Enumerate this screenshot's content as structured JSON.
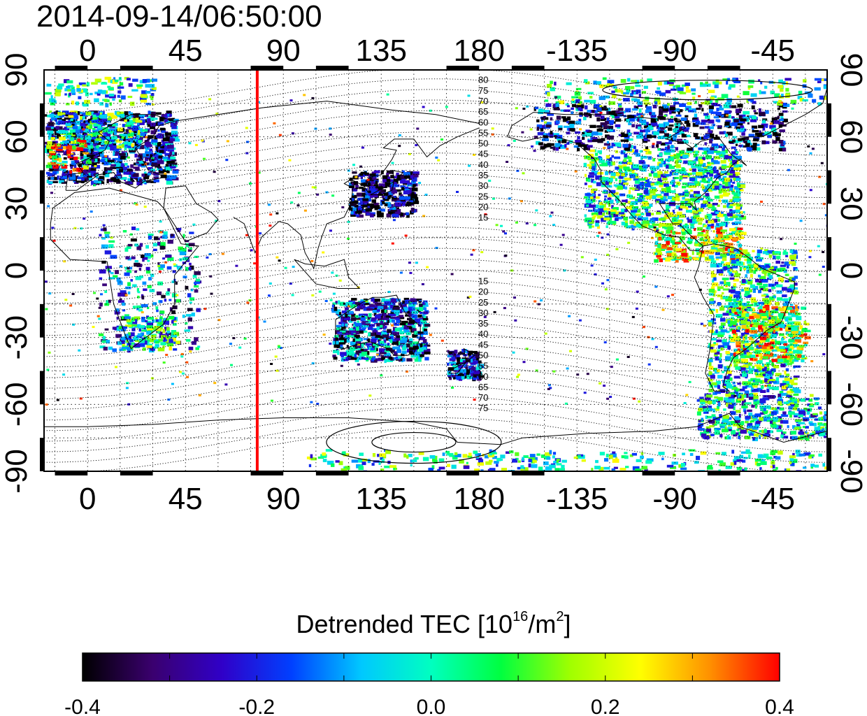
{
  "timestamp": "2014-09-14/06:50:00",
  "map": {
    "lon_tick_labels": [
      "0",
      "45",
      "90",
      "135",
      "180",
      "-135",
      "-90",
      "-45"
    ],
    "lat_tick_labels": [
      "90",
      "60",
      "30",
      "0",
      "-30",
      "-60",
      "-90"
    ],
    "lon_ticks": [
      0,
      45,
      90,
      135,
      180,
      225,
      270,
      315
    ],
    "lat_ticks": [
      90,
      60,
      30,
      0,
      -30,
      -60,
      -90
    ],
    "lon_range": [
      -20,
      340
    ],
    "lat_range": [
      -90,
      90
    ],
    "marker_line_longitude": 78,
    "marker_line_color": "#ff0000",
    "contour_labels_north": [
      "80",
      "75",
      "70",
      "65",
      "60",
      "55",
      "50",
      "45",
      "40",
      "35",
      "30",
      "25",
      "20",
      "15"
    ],
    "contour_labels_south": [
      "15",
      "20",
      "25",
      "30",
      "35",
      "40",
      "45",
      "50",
      "55",
      "60",
      "65",
      "70",
      "75"
    ],
    "contour_label_longitude": 180
  },
  "colorbar": {
    "title_main": "Detrended TEC  [10",
    "title_sup1": "16",
    "title_mid": "/m",
    "title_sup2": "2",
    "title_end": "]",
    "tick_labels": [
      "-0.4",
      "-0.2",
      "0.0",
      "0.2",
      "0.4"
    ],
    "range": [
      -0.4,
      0.4
    ],
    "colors": [
      "#000000",
      "#3a006e",
      "#3000c8",
      "#0040ff",
      "#00c8ff",
      "#00ffc0",
      "#00ff40",
      "#a0ff00",
      "#ffff00",
      "#ff9000",
      "#ff0000"
    ]
  }
}
